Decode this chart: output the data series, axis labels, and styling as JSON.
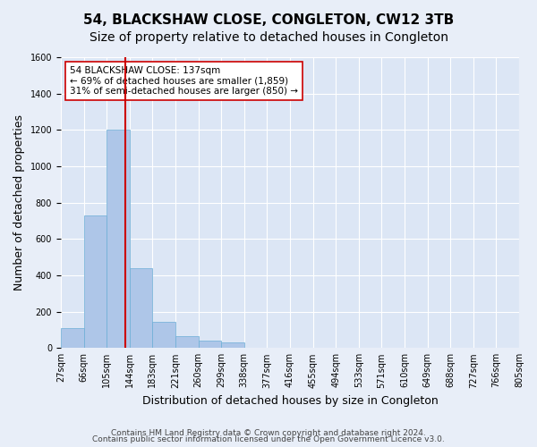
{
  "title": "54, BLACKSHAW CLOSE, CONGLETON, CW12 3TB",
  "subtitle": "Size of property relative to detached houses in Congleton",
  "xlabel": "Distribution of detached houses by size in Congleton",
  "ylabel": "Number of detached properties",
  "bar_values": [
    110,
    730,
    1200,
    440,
    145,
    65,
    40,
    30,
    0,
    0,
    0,
    0,
    0,
    0,
    0,
    0,
    0,
    0,
    0,
    0
  ],
  "bar_labels": [
    "27sqm",
    "66sqm",
    "105sqm",
    "144sqm",
    "183sqm",
    "221sqm",
    "260sqm",
    "299sqm",
    "338sqm",
    "377sqm",
    "416sqm",
    "455sqm",
    "494sqm",
    "533sqm",
    "571sqm",
    "610sqm",
    "649sqm",
    "688sqm",
    "727sqm",
    "766sqm",
    "805sqm"
  ],
  "bar_color": "#aec6e8",
  "bar_edge_color": "#6baed6",
  "bar_width": 1.0,
  "ylim": [
    0,
    1600
  ],
  "yticks": [
    0,
    200,
    400,
    600,
    800,
    1000,
    1200,
    1400,
    1600
  ],
  "vline_color": "#cc0000",
  "annotation_title": "54 BLACKSHAW CLOSE: 137sqm",
  "annotation_line1": "← 69% of detached houses are smaller (1,859)",
  "annotation_line2": "31% of semi-detached houses are larger (850) →",
  "annotation_box_color": "#ffffff",
  "annotation_box_edge": "#cc0000",
  "bg_color": "#e8eef8",
  "plot_bg_color": "#dce6f5",
  "footer_line1": "Contains HM Land Registry data © Crown copyright and database right 2024.",
  "footer_line2": "Contains public sector information licensed under the Open Government Licence v3.0.",
  "grid_color": "#ffffff",
  "title_fontsize": 11,
  "subtitle_fontsize": 10,
  "xlabel_fontsize": 9,
  "ylabel_fontsize": 9,
  "tick_fontsize": 7,
  "footer_fontsize": 6.5
}
